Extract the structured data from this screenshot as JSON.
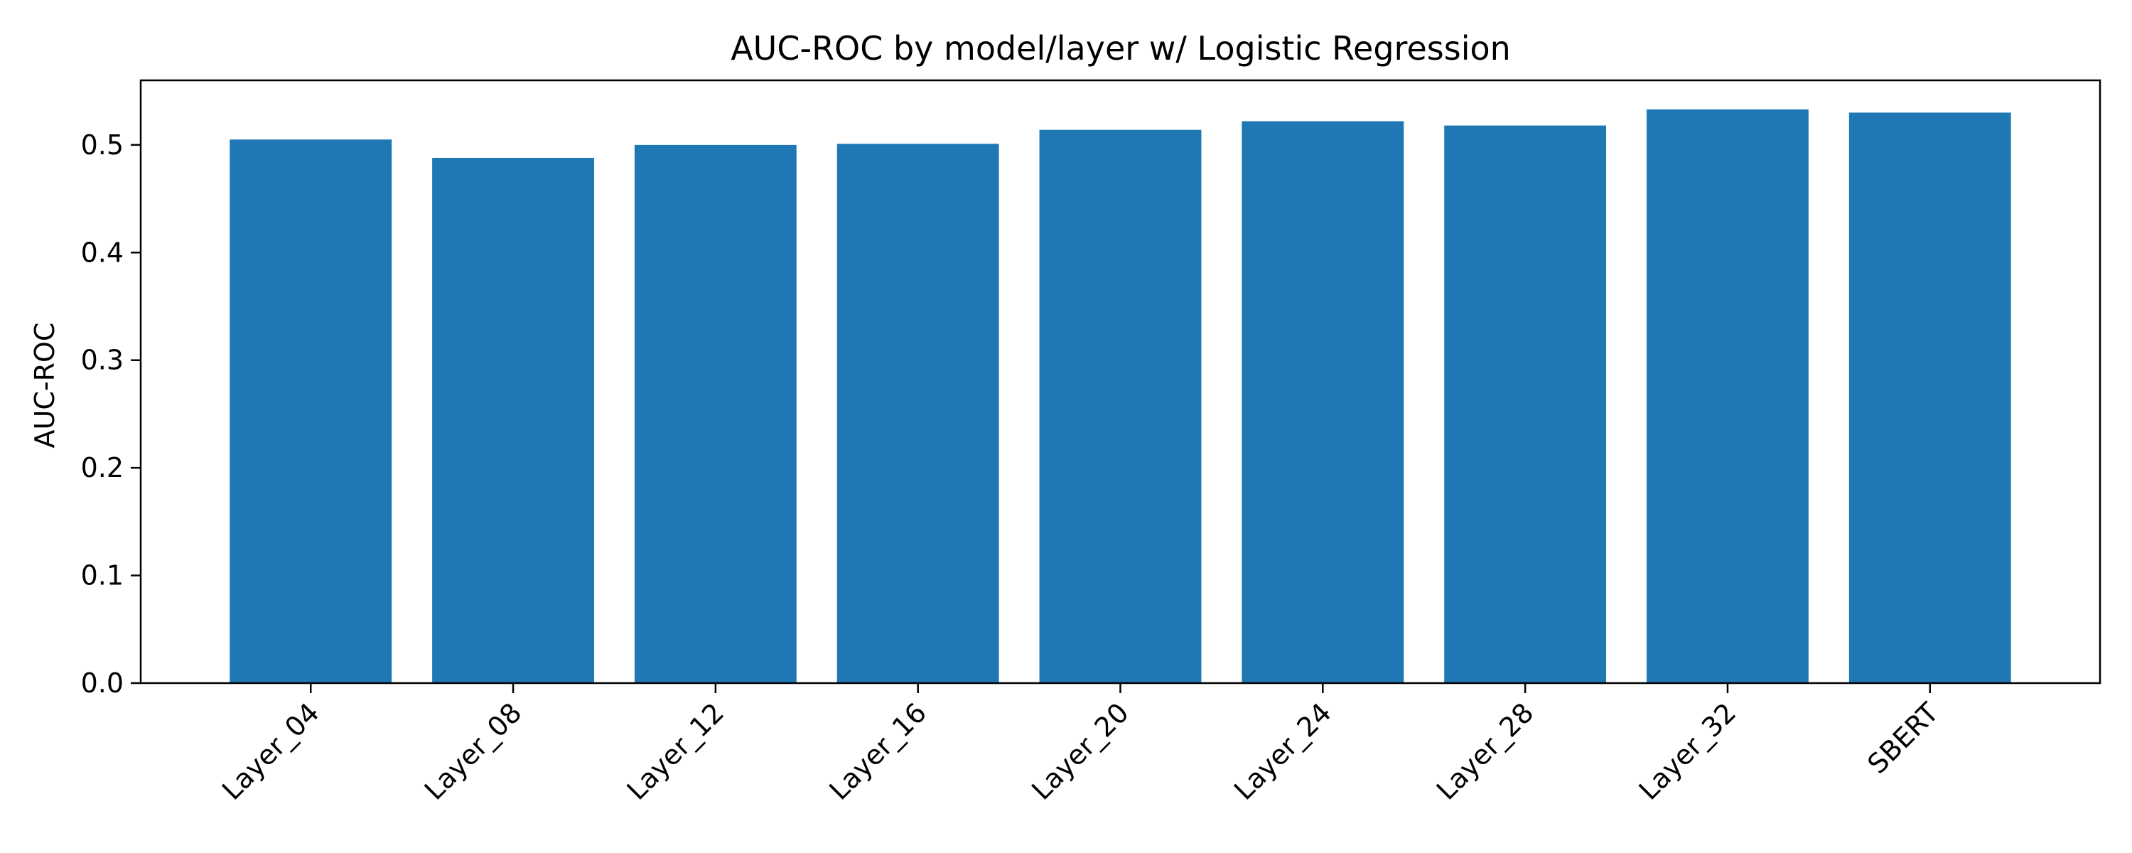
{
  "chart_data": {
    "type": "bar",
    "title": "AUC-ROC by model/layer w/ Logistic Regression",
    "xlabel": "",
    "ylabel": "AUC-ROC",
    "categories": [
      "Layer_04",
      "Layer_08",
      "Layer_12",
      "Layer_16",
      "Layer_20",
      "Layer_24",
      "Layer_28",
      "Layer_32",
      "SBERT"
    ],
    "values": [
      0.505,
      0.488,
      0.5,
      0.501,
      0.514,
      0.522,
      0.518,
      0.533,
      0.53
    ],
    "ylim": [
      0,
      0.56
    ],
    "yticks": [
      "0.0",
      "0.1",
      "0.2",
      "0.3",
      "0.4",
      "0.5"
    ],
    "bar_color": "#1f77b4",
    "grid": false,
    "legend": "none"
  }
}
